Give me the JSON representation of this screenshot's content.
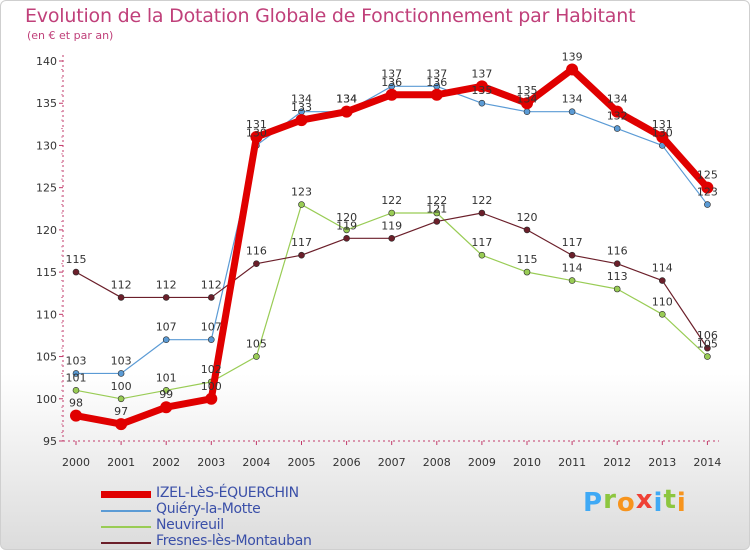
{
  "title": "Evolution de la Dotation Globale de Fonctionnement par Habitant",
  "subtitle": "(en € et par an)",
  "logo": {
    "letters": [
      "P",
      "r",
      "o",
      "x",
      "i",
      "t",
      "i"
    ],
    "colors": [
      "#3fa9f5",
      "#8dc63f",
      "#f7941d",
      "#ef4136",
      "#3fa9f5",
      "#8dc63f",
      "#f7941d"
    ]
  },
  "chart_data": {
    "type": "line",
    "title": "Evolution de la Dotation Globale de Fonctionnement par Habitant",
    "subtitle": "(en € et par an)",
    "x": [
      "2000",
      "2001",
      "2002",
      "2003",
      "2004",
      "2005",
      "2006",
      "2007",
      "2008",
      "2009",
      "2010",
      "2011",
      "2012",
      "2013",
      "2014"
    ],
    "ylim": [
      95,
      140
    ],
    "yticks": [
      95,
      100,
      105,
      110,
      115,
      120,
      125,
      130,
      135,
      140
    ],
    "grid": false,
    "legend_position": "bottom-left",
    "series": [
      {
        "name": "IZEL-LèS-ÉQUERCHIN",
        "color": "#e00000",
        "width": 7,
        "values": [
          98,
          97,
          99,
          100,
          131,
          133,
          134,
          136,
          136,
          137,
          135,
          139,
          134,
          131,
          125
        ],
        "labels": [
          "98",
          "97",
          "99",
          "100",
          "131",
          "133",
          "134",
          "136",
          "136",
          "137",
          "135",
          "139",
          "134",
          "131",
          "125"
        ]
      },
      {
        "name": "Quiéry-la-Motte",
        "color": "#5b9bd5",
        "width": 1.2,
        "values": [
          103,
          103,
          107,
          107,
          130,
          134,
          134,
          137,
          137,
          135,
          134,
          134,
          132,
          130,
          123
        ],
        "labels": [
          "103",
          "103",
          "107",
          "107",
          "130",
          "134",
          "134",
          "137",
          "137",
          "135",
          "134",
          "134",
          "132",
          "130",
          "123"
        ]
      },
      {
        "name": "Neuvireuil",
        "color": "#99cc55",
        "width": 1.2,
        "values": [
          101,
          100,
          101,
          102,
          105,
          123,
          120,
          122,
          122,
          117,
          115,
          114,
          113,
          110,
          105
        ],
        "labels": [
          "101",
          "100",
          "101",
          "102",
          "105",
          "123",
          "120",
          "122",
          "122",
          "117",
          "115",
          "114",
          "113",
          "110",
          "105"
        ]
      },
      {
        "name": "Fresnes-lès-Montauban",
        "color": "#6b1f2a",
        "width": 1.2,
        "values": [
          115,
          112,
          112,
          112,
          116,
          117,
          119,
          119,
          121,
          122,
          120,
          117,
          116,
          114,
          106
        ],
        "labels": [
          "115",
          "112",
          "112",
          "112",
          "116",
          "117",
          "119",
          "119",
          "121",
          "122",
          "120",
          "117",
          "116",
          "114",
          "106"
        ]
      }
    ]
  }
}
